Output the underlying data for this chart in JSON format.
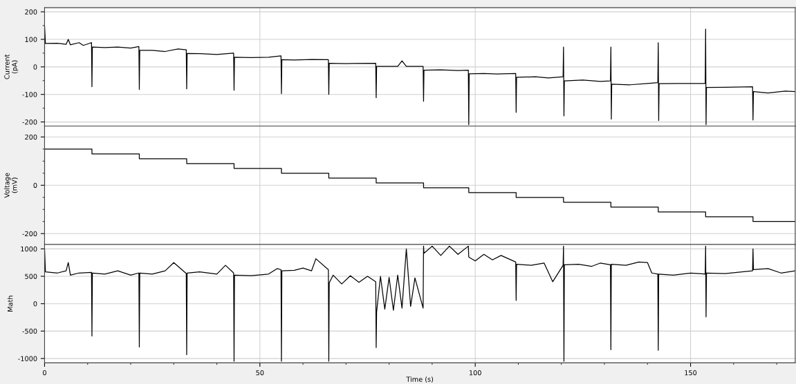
{
  "chart_data": [
    {
      "type": "line",
      "ylabel": "Current\n(pA)",
      "tick_labels": "y",
      "grid": true,
      "xlim": [
        0,
        174.3
      ],
      "ylim": [
        -215,
        215
      ],
      "xticks": [
        0,
        50,
        100,
        150
      ],
      "yticks": [
        -200,
        {
          "value": -150,
          "label": null
        },
        -100,
        {
          "value": -50,
          "label": null
        },
        0,
        {
          "value": 50,
          "label": null
        },
        100,
        {
          "value": 150,
          "label": null
        },
        200
      ],
      "series": [
        {
          "color": "#000000",
          "x": [
            0,
            0,
            0.2,
            3,
            5,
            5.5,
            6,
            8,
            9,
            10.9,
            11,
            11.1,
            14,
            17,
            20,
            21.9,
            22,
            22.1,
            25,
            28,
            31,
            32.9,
            33,
            33.1,
            36,
            40,
            43.9,
            44,
            44.1,
            48,
            52,
            54.9,
            55,
            55.1,
            58,
            62,
            65.9,
            66,
            66.1,
            70,
            76.9,
            77,
            77.1,
            82,
            83,
            84,
            87.9,
            88,
            88.1,
            92,
            96,
            98.4,
            98.5,
            98.6,
            102,
            105,
            109.4,
            109.5,
            109.6,
            114,
            117,
            120.4,
            120.5,
            120.6,
            120.7,
            125,
            129,
            131.4,
            131.5,
            131.6,
            131.7,
            136,
            140,
            142.4,
            142.5,
            142.6,
            142.7,
            147,
            153.4,
            153.5,
            153.6,
            153.7,
            158,
            164.4,
            164.5,
            164.6,
            168,
            172,
            174.3
          ],
          "values": [
            0,
            150,
            85,
            86,
            82,
            100,
            80,
            88,
            78,
            88,
            -72,
            72,
            70,
            72,
            68,
            74,
            -82,
            60,
            60,
            56,
            65,
            62,
            -80,
            49,
            48,
            45,
            50,
            -85,
            35,
            34,
            35,
            40,
            -97,
            26,
            25,
            27,
            26,
            -100,
            13,
            12,
            13,
            -112,
            2,
            2,
            22,
            2,
            2,
            -125,
            -12,
            -11,
            -13,
            -12,
            -210,
            -25,
            -24,
            -26,
            -24,
            -165,
            -38,
            -36,
            -40,
            -36,
            72,
            -178,
            -51,
            -48,
            -53,
            -51,
            72,
            -190,
            -63,
            -65,
            -60,
            -57,
            88,
            -195,
            -61,
            -60,
            -60,
            137,
            -210,
            -75,
            -74,
            -72,
            -193,
            -90,
            -95,
            -88,
            -90
          ]
        }
      ]
    },
    {
      "type": "step",
      "ylabel": "Voltage\n(mV)",
      "tick_labels": "y",
      "grid": true,
      "xlim": [
        0,
        174.3
      ],
      "ylim": [
        -245,
        245
      ],
      "xticks": [
        0,
        50,
        100,
        150
      ],
      "yticks": [
        -200,
        {
          "value": -150,
          "label": null
        },
        {
          "value": -100,
          "label": null
        },
        {
          "value": -50,
          "label": null
        },
        0,
        {
          "value": 50,
          "label": null
        },
        {
          "value": 100,
          "label": null
        },
        {
          "value": 150,
          "label": null
        },
        200
      ],
      "series": [
        {
          "color": "#000000",
          "x": [
            0,
            0,
            11,
            22,
            33,
            44,
            55,
            66,
            77,
            88,
            98.5,
            109.5,
            120.5,
            131.5,
            142.5,
            153.5,
            164.5,
            174.3
          ],
          "values": [
            0,
            150,
            130,
            110,
            90,
            70,
            50,
            30,
            10,
            -10,
            -30,
            -50,
            -70,
            -90,
            -110,
            -130,
            -150,
            -150
          ]
        }
      ]
    },
    {
      "type": "line",
      "ylabel": "Math",
      "xlabel": "Time (s)",
      "grid": true,
      "xlim": [
        0,
        174.3
      ],
      "ylim": [
        -1080,
        1080
      ],
      "xticks": [
        0,
        {
          "value": 10,
          "label": null
        },
        {
          "value": 20,
          "label": null
        },
        {
          "value": 30,
          "label": null
        },
        {
          "value": 40,
          "label": null
        },
        50,
        {
          "value": 60,
          "label": null
        },
        {
          "value": 70,
          "label": null
        },
        {
          "value": 80,
          "label": null
        },
        {
          "value": 90,
          "label": null
        },
        100,
        {
          "value": 110,
          "label": null
        },
        {
          "value": 120,
          "label": null
        },
        {
          "value": 130,
          "label": null
        },
        {
          "value": 140,
          "label": null
        },
        150,
        {
          "value": 160,
          "label": null
        },
        {
          "value": 170,
          "label": null
        }
      ],
      "yticks": [
        -1000,
        -500,
        0,
        500,
        1000
      ],
      "series": [
        {
          "color": "#000000",
          "x": [
            0,
            0.2,
            3,
            5,
            5.5,
            6,
            8,
            10.9,
            11,
            11.1,
            14,
            17,
            20,
            21.9,
            22,
            22.1,
            25,
            28,
            30,
            32.9,
            33,
            33.1,
            36,
            40,
            42,
            43.9,
            44,
            44.1,
            48,
            52,
            54,
            54.9,
            55,
            55.1,
            58,
            60,
            62,
            63,
            65.9,
            66,
            66.1,
            67,
            69,
            71,
            73,
            75,
            76.9,
            77,
            77.1,
            78,
            79,
            80,
            81,
            82,
            83,
            84,
            85,
            86,
            87.9,
            88,
            88.1,
            90,
            92,
            94,
            96,
            98.4,
            98.5,
            100,
            102,
            104,
            106,
            109.4,
            109.5,
            109.6,
            113,
            116,
            118,
            120.4,
            120.5,
            120.6,
            120.7,
            124,
            127,
            129,
            131.4,
            131.5,
            131.6,
            135,
            138,
            140,
            141,
            142.4,
            142.5,
            142.6,
            146,
            150,
            153.4,
            153.5,
            153.6,
            153.7,
            158,
            162,
            164.4,
            164.5,
            164.6,
            168,
            171,
            174.3
          ],
          "values": [
            1000,
            580,
            560,
            600,
            750,
            520,
            560,
            570,
            -590,
            560,
            540,
            600,
            520,
            560,
            -790,
            560,
            540,
            600,
            750,
            550,
            -930,
            560,
            580,
            540,
            700,
            560,
            -1050,
            520,
            510,
            540,
            640,
            620,
            -1050,
            600,
            610,
            650,
            600,
            820,
            620,
            -1050,
            380,
            520,
            360,
            510,
            390,
            500,
            400,
            -800,
            -150,
            500,
            -100,
            480,
            -120,
            520,
            -80,
            1000,
            -50,
            470,
            -80,
            1050,
            920,
            1050,
            880,
            1050,
            900,
            1050,
            850,
            780,
            900,
            800,
            880,
            760,
            60,
            720,
            700,
            740,
            400,
            700,
            1050,
            -1050,
            710,
            720,
            680,
            740,
            710,
            -840,
            720,
            700,
            760,
            750,
            560,
            540,
            -850,
            540,
            520,
            560,
            540,
            1050,
            -240,
            560,
            550,
            580,
            600,
            1000,
            620,
            640,
            560,
            600
          ]
        }
      ]
    }
  ]
}
